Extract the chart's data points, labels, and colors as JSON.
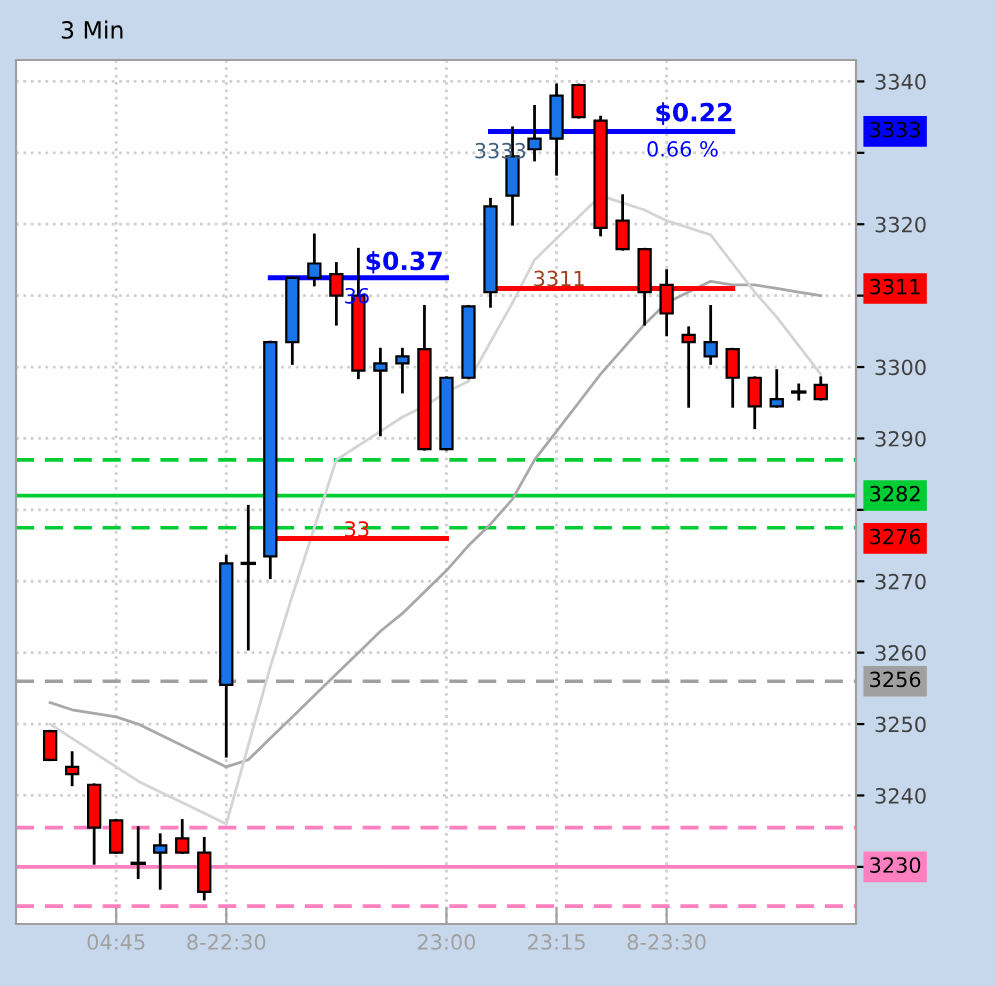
{
  "chart_data": {
    "type": "candlestick",
    "title": "3 Min",
    "categories": [
      null,
      null,
      null,
      "04:45",
      null,
      null,
      null,
      null,
      "8-22:30",
      null,
      null,
      null,
      null,
      null,
      null,
      null,
      null,
      null,
      "23:00",
      null,
      null,
      null,
      null,
      "23:15",
      null,
      null,
      null,
      null,
      "8-23:30",
      null,
      null,
      null,
      null,
      null,
      null,
      null
    ],
    "ohlc": [
      [
        3249,
        3249,
        3245,
        3245
      ],
      [
        3244,
        3246,
        3241.5,
        3243
      ],
      [
        3241.5,
        3241.5,
        3230.5,
        3235.5
      ],
      [
        3236.5,
        3236.5,
        3232,
        3232
      ],
      [
        3230.5,
        3235.5,
        3228.5,
        3230.5
      ],
      [
        3232,
        3234.5,
        3227,
        3233
      ],
      [
        3234,
        3236.5,
        3232,
        3232
      ],
      [
        3232,
        3234,
        3225.5,
        3226.5
      ],
      [
        3255.5,
        3273.5,
        3245.5,
        3272.5
      ],
      [
        3272.5,
        3280.5,
        3260.5,
        3272.5
      ],
      [
        3273.5,
        3303.5,
        3270.5,
        3303.5
      ],
      [
        3303.5,
        3312.5,
        3300.5,
        3312.5
      ],
      [
        3312.5,
        3318.5,
        3311.5,
        3314.5
      ],
      [
        3313,
        3314.5,
        3306,
        3310
      ],
      [
        3310,
        3316.5,
        3298.5,
        3299.5
      ],
      [
        3299.5,
        3302.5,
        3290.5,
        3300.5
      ],
      [
        3300.5,
        3302.5,
        3296.5,
        3301.5
      ],
      [
        3302.5,
        3308.5,
        3288.5,
        3288.5
      ],
      [
        3288.5,
        3298.5,
        3288.5,
        3298.5
      ],
      [
        3298.5,
        3308.5,
        3298.5,
        3308.5
      ],
      [
        3310.5,
        3323.5,
        3308.5,
        3322.5
      ],
      [
        3324,
        3333.5,
        3320,
        3329.5
      ],
      [
        3330.5,
        3336.5,
        3329,
        3332
      ],
      [
        3332,
        3339.5,
        3327,
        3338
      ],
      [
        3339.5,
        3339.5,
        3335,
        3335
      ],
      [
        3334.5,
        3335,
        3318.5,
        3319.5
      ],
      [
        3320.5,
        3324,
        3316.5,
        3316.5
      ],
      [
        3316.5,
        3316.5,
        3306,
        3310.5
      ],
      [
        3311.5,
        3313.5,
        3304.5,
        3307.5
      ],
      [
        3304.5,
        3305.5,
        3294.5,
        3303.5
      ],
      [
        3301.5,
        3308.5,
        3300.5,
        3303.5
      ],
      [
        3302.5,
        3302.5,
        3294.5,
        3298.5
      ],
      [
        3298.5,
        3298.5,
        3291.5,
        3294.5
      ],
      [
        3294.5,
        3299.5,
        3294.5,
        3295.5
      ],
      [
        3296.5,
        3297.5,
        3295.5,
        3296.5
      ],
      [
        3297.5,
        3298.5,
        3295.5,
        3295.5
      ]
    ],
    "colors": [
      "#ff0000",
      "#ff0000",
      "#ff0000",
      "#ff0000",
      "#000000",
      "#1874e8",
      "#ff0000",
      "#ff0000",
      "#1874e8",
      "#000000",
      "#1874e8",
      "#1874e8",
      "#1874e8",
      "#ff0000",
      "#ff0000",
      "#1874e8",
      "#1874e8",
      "#ff0000",
      "#1874e8",
      "#1874e8",
      "#1874e8",
      "#1874e8",
      "#1874e8",
      "#1874e8",
      "#ff0000",
      "#ff0000",
      "#ff0000",
      "#ff0000",
      "#ff0000",
      "#ff0000",
      "#1874e8",
      "#ff0000",
      "#ff0000",
      "#1874e8",
      "#000000",
      "#ff0000"
    ],
    "series": [
      {
        "type": "line",
        "color": "#a8a8a8",
        "values": [
          3253,
          3252,
          3251.5,
          3251,
          3250,
          3248.5,
          3247,
          3245.5,
          3244,
          3245,
          3248,
          3251,
          3254,
          3257,
          3260,
          3263,
          3265.5,
          3268.5,
          3271.5,
          3275,
          3278,
          3281.5,
          3287,
          3291,
          3295,
          3299,
          3302.5,
          3306,
          3309,
          3310.5,
          3312,
          3311.5,
          3311.5,
          3311,
          3310.5,
          3310
        ]
      },
      {
        "type": "line",
        "color": "#d4d4d4",
        "values": [
          3250,
          3248,
          3246,
          3244,
          3242,
          3240.5,
          3239,
          3237.5,
          3236,
          3247,
          3258,
          3268,
          3277.5,
          3287,
          3289,
          3291,
          3293,
          3294.5,
          3296.5,
          3298,
          3303.5,
          3309,
          3315,
          3318,
          3321,
          3324,
          3323,
          3322,
          3320.5,
          3319.5,
          3318.5,
          3314.5,
          3310.5,
          3307,
          3303,
          3299
        ]
      },
      {
        "type": "line",
        "color": "#0000ff",
        "values": [
          null,
          null,
          null,
          null,
          null,
          null,
          null,
          null,
          null,
          null,
          3312.5,
          3312.5,
          3312.5,
          3312.5,
          3312.5,
          3312.5,
          3312.5,
          3312.5,
          3312.5,
          null,
          null,
          null,
          null,
          null,
          null,
          null,
          null,
          null,
          null,
          null,
          null,
          null,
          null,
          null,
          null,
          null
        ]
      },
      {
        "type": "line",
        "color": "#ff0000",
        "name": "3276",
        "values": [
          null,
          null,
          null,
          null,
          null,
          null,
          null,
          null,
          null,
          null,
          3276,
          3276,
          3276,
          3276,
          3276,
          3276,
          3276,
          3276,
          3276,
          null,
          null,
          null,
          null,
          null,
          null,
          null,
          null,
          null,
          null,
          null,
          null,
          null,
          null,
          null,
          null,
          null
        ]
      },
      {
        "type": "line",
        "color": "#0000ff",
        "name": "3333",
        "values": [
          null,
          null,
          null,
          null,
          null,
          null,
          null,
          null,
          null,
          null,
          null,
          null,
          null,
          null,
          null,
          null,
          null,
          null,
          null,
          null,
          3333,
          3333,
          3333,
          3333,
          3333,
          3333,
          3333,
          3333,
          3333,
          3333,
          3333,
          3333,
          null,
          null,
          null,
          null
        ]
      },
      {
        "type": "line",
        "color": "#ff0000",
        "name": "3311",
        "values": [
          null,
          null,
          null,
          null,
          null,
          null,
          null,
          null,
          null,
          null,
          null,
          null,
          null,
          null,
          null,
          null,
          null,
          null,
          null,
          null,
          3311,
          3311,
          3311,
          3311,
          3311,
          3311,
          3311,
          3311,
          3311,
          3311,
          3311,
          3311,
          null,
          null,
          null,
          null
        ]
      }
    ],
    "ref_lines": [
      {
        "axis": "y",
        "value": 3287,
        "color": "#00cc33",
        "line_style": "dashed"
      },
      {
        "axis": "y",
        "value": 3282,
        "color": "#00cc33",
        "label": "3282"
      },
      {
        "axis": "y",
        "value": 3277.5,
        "color": "#00cc33",
        "line_style": "dashed"
      },
      {
        "axis": "y",
        "value": 3256,
        "color": "#a0a0a0",
        "line_style": "dashed",
        "label": "3256"
      },
      {
        "axis": "y",
        "value": 3235.5,
        "color": "#ff80c0",
        "line_style": "dashed"
      },
      {
        "axis": "y",
        "value": 3230,
        "color": "#ff80c0",
        "label": "3230"
      },
      {
        "axis": "y",
        "value": 3224.5,
        "color": "#ff80c0",
        "line_style": "dashed"
      }
    ],
    "annotations": [
      "$0.37",
      "36",
      "33",
      "$0.22",
      "0.66 %",
      "3333",
      "3311"
    ],
    "ylim": [
      3222,
      3343
    ],
    "yticks": [
      {
        "value": 3230,
        "label": null
      },
      3240,
      3250,
      3260,
      3270,
      {
        "value": 3280,
        "label": null
      },
      3290,
      3300,
      {
        "value": 3310,
        "label": null
      },
      3320,
      {
        "value": 3330,
        "label": null
      },
      3340
    ],
    "grid": true,
    "legend": "right"
  }
}
